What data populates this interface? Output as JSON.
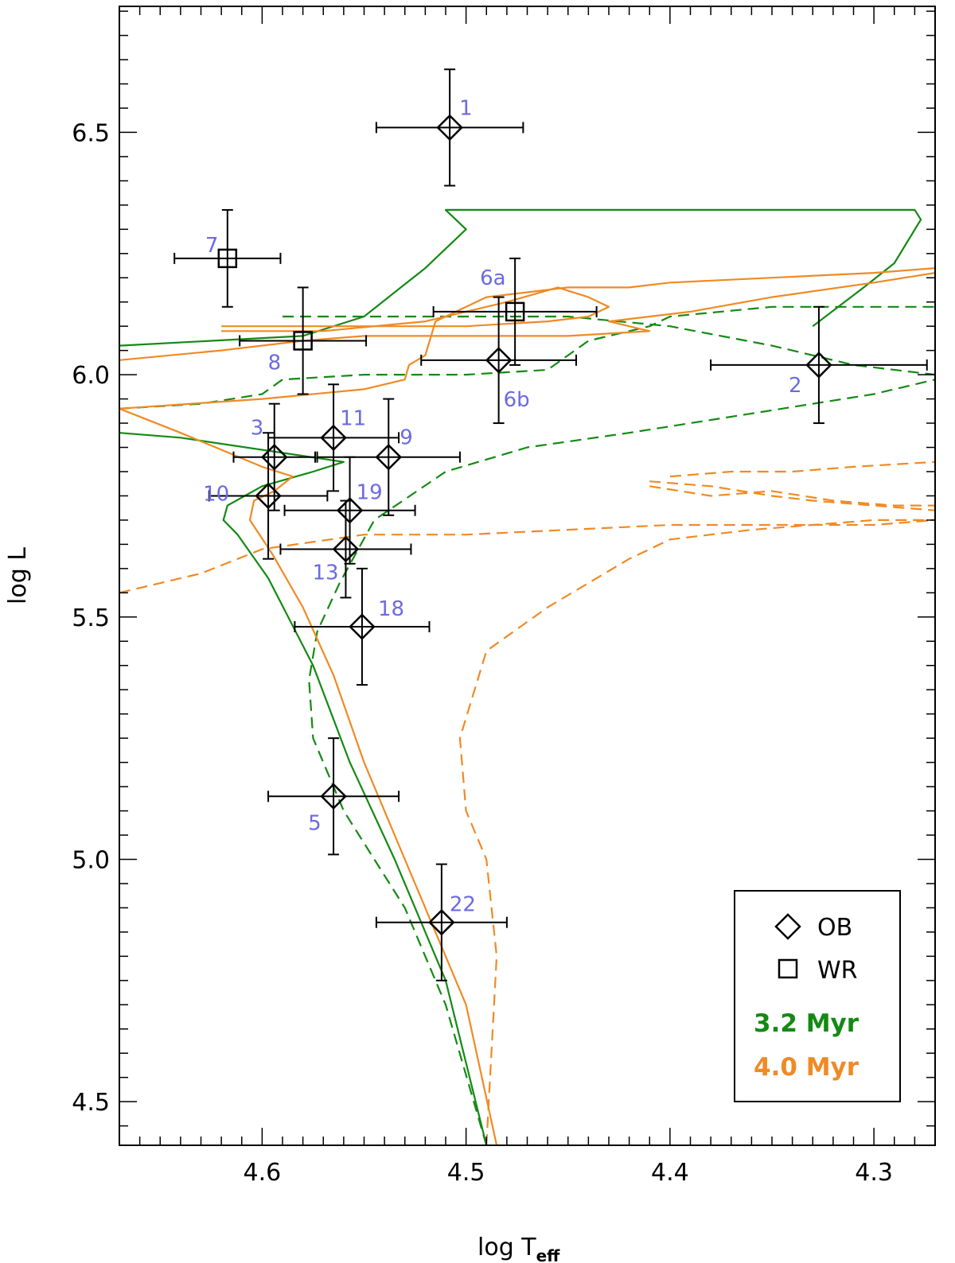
{
  "chart_data": {
    "type": "scatter",
    "xlabel": "log T",
    "xlabel_sub": "eff",
    "ylabel": "log L",
    "xlim": [
      4.67,
      4.27
    ],
    "ylim": [
      4.41,
      6.76
    ],
    "x_ticks": [
      "4.6",
      "4.5",
      "4.4",
      "4.3"
    ],
    "x_tick_values": [
      4.6,
      4.5,
      4.4,
      4.3
    ],
    "y_ticks": [
      "4.5",
      "5.0",
      "5.5",
      "6.0",
      "6.5"
    ],
    "y_tick_values": [
      4.5,
      5.0,
      5.5,
      6.0,
      6.5
    ],
    "grid": false,
    "points": [
      {
        "label": "1",
        "marker": "diamond",
        "x": 4.508,
        "y": 6.51,
        "xerr": 0.036,
        "yerr": 0.12
      },
      {
        "label": "7",
        "marker": "square",
        "x": 4.617,
        "y": 6.24,
        "xerr": 0.026,
        "yerr": 0.1
      },
      {
        "label": "6a",
        "marker": "square",
        "x": 4.476,
        "y": 6.13,
        "xerr": 0.04,
        "yerr": 0.11
      },
      {
        "label": "8",
        "marker": "square",
        "x": 4.58,
        "y": 6.07,
        "xerr": 0.031,
        "yerr": 0.11
      },
      {
        "label": "6b",
        "marker": "diamond",
        "x": 4.484,
        "y": 6.03,
        "xerr": 0.038,
        "yerr": 0.13
      },
      {
        "label": "2",
        "marker": "diamond",
        "x": 4.327,
        "y": 6.02,
        "xerr": 0.053,
        "yerr": 0.12
      },
      {
        "label": "11",
        "marker": "diamond",
        "x": 4.565,
        "y": 5.87,
        "xerr": 0.032,
        "yerr": 0.11
      },
      {
        "label": "3",
        "marker": "diamond",
        "x": 4.594,
        "y": 5.83,
        "xerr": 0.02,
        "yerr": 0.11
      },
      {
        "label": "9",
        "marker": "diamond",
        "x": 4.538,
        "y": 5.83,
        "xerr": 0.035,
        "yerr": 0.12
      },
      {
        "label": "10",
        "marker": "diamond",
        "x": 4.597,
        "y": 5.75,
        "xerr": 0.029,
        "yerr": 0.13
      },
      {
        "label": "19",
        "marker": "diamond",
        "x": 4.557,
        "y": 5.72,
        "xerr": 0.032,
        "yerr": 0.11
      },
      {
        "label": "13",
        "marker": "diamond",
        "x": 4.559,
        "y": 5.64,
        "xerr": 0.032,
        "yerr": 0.1
      },
      {
        "label": "18",
        "marker": "diamond",
        "x": 4.551,
        "y": 5.48,
        "xerr": 0.033,
        "yerr": 0.12
      },
      {
        "label": "5",
        "marker": "diamond",
        "x": 4.565,
        "y": 5.13,
        "xerr": 0.032,
        "yerr": 0.12
      },
      {
        "label": "22",
        "marker": "diamond",
        "x": 4.512,
        "y": 4.87,
        "xerr": 0.032,
        "yerr": 0.12
      }
    ],
    "series": [
      {
        "name": "3.2 Myr",
        "color": "#138a13",
        "dash": false,
        "x": [
          4.49,
          4.51,
          4.535,
          4.557,
          4.575,
          4.597,
          4.612,
          4.619,
          4.617,
          4.6,
          4.575,
          4.56,
          4.64,
          4.67
        ],
        "y": [
          4.41,
          4.75,
          5.0,
          5.2,
          5.4,
          5.58,
          5.67,
          5.7,
          5.73,
          5.77,
          5.8,
          5.82,
          5.87,
          5.88
        ]
      },
      {
        "name": "3.2 Myr",
        "color": "#138a13",
        "dash": false,
        "x": [
          4.67,
          4.58,
          4.55,
          4.535,
          4.52,
          4.5,
          4.51,
          4.495,
          4.45,
          4.4,
          4.35,
          4.3,
          4.28,
          4.277,
          4.29,
          4.305,
          4.33
        ],
        "y": [
          6.06,
          6.08,
          6.12,
          6.17,
          6.22,
          6.3,
          6.34,
          6.34,
          6.34,
          6.34,
          6.34,
          6.34,
          6.34,
          6.32,
          6.23,
          6.18,
          6.1
        ]
      },
      {
        "name": "3.2 Myr",
        "color": "#138a13",
        "dash": true,
        "x": [
          4.49,
          4.51,
          4.53,
          4.56,
          4.575,
          4.577,
          4.573,
          4.562,
          4.545,
          4.51,
          4.47,
          4.42,
          4.36,
          4.3,
          4.27
        ],
        "y": [
          4.41,
          4.7,
          4.9,
          5.1,
          5.25,
          5.37,
          5.47,
          5.57,
          5.7,
          5.8,
          5.85,
          5.88,
          5.92,
          5.96,
          5.99
        ]
      },
      {
        "name": "3.2 Myr",
        "color": "#138a13",
        "dash": true,
        "x": [
          4.67,
          4.63,
          4.6,
          4.59,
          4.55,
          4.5,
          4.46,
          4.44,
          4.41,
          4.4,
          4.35,
          4.32,
          4.3,
          4.27
        ],
        "y": [
          5.93,
          5.94,
          5.96,
          5.99,
          6.0,
          6.0,
          6.01,
          6.07,
          6.1,
          6.12,
          6.14,
          6.14,
          6.14,
          6.14
        ]
      },
      {
        "name": "3.2 Myr",
        "color": "#138a13",
        "dash": true,
        "x": [
          4.59,
          4.55,
          4.5,
          4.45,
          4.4,
          4.35,
          4.31,
          4.27
        ],
        "y": [
          6.12,
          6.12,
          6.12,
          6.12,
          6.1,
          6.06,
          6.02,
          6.0
        ]
      },
      {
        "name": "4.0 Myr",
        "color": "#f08a24",
        "dash": false,
        "x": [
          4.485,
          4.5,
          4.53,
          4.55,
          4.565,
          4.58,
          4.595,
          4.606,
          4.604,
          4.594,
          4.585,
          4.6,
          4.64,
          4.67
        ],
        "y": [
          4.41,
          4.7,
          5.0,
          5.2,
          5.38,
          5.52,
          5.63,
          5.7,
          5.74,
          5.76,
          5.79,
          5.81,
          5.88,
          5.93
        ]
      },
      {
        "name": "4.0 Myr",
        "color": "#f08a24",
        "dash": false,
        "x": [
          4.67,
          4.6,
          4.55,
          4.53,
          4.528,
          4.52,
          4.515,
          4.49,
          4.45,
          4.42,
          4.4,
          4.35,
          4.3,
          4.27
        ],
        "y": [
          5.93,
          5.95,
          5.97,
          5.99,
          6.02,
          6.04,
          6.11,
          6.16,
          6.18,
          6.18,
          6.19,
          6.2,
          6.21,
          6.22
        ]
      },
      {
        "name": "4.0 Myr",
        "color": "#f08a24",
        "dash": false,
        "x": [
          4.67,
          4.62,
          4.58,
          4.55,
          4.5,
          4.45,
          4.41,
          4.43,
          4.39,
          4.35,
          4.3,
          4.27
        ],
        "y": [
          6.03,
          6.05,
          6.07,
          6.08,
          6.08,
          6.08,
          6.09,
          6.11,
          6.13,
          6.16,
          6.19,
          6.21
        ]
      },
      {
        "name": "4.0 Myr",
        "color": "#f08a24",
        "dash": false,
        "x": [
          4.62,
          4.55,
          4.5,
          4.46,
          4.44,
          4.43,
          4.44,
          4.455,
          4.48,
          4.52,
          4.57,
          4.62
        ],
        "y": [
          6.1,
          6.1,
          6.1,
          6.11,
          6.12,
          6.14,
          6.16,
          6.18,
          6.15,
          6.11,
          6.09,
          6.09
        ]
      },
      {
        "name": "4.0 Myr",
        "color": "#f08a24",
        "dash": true,
        "x": [
          4.67,
          4.63,
          4.6,
          4.55,
          4.5,
          4.45,
          4.4,
          4.35,
          4.3,
          4.27
        ],
        "y": [
          5.55,
          5.59,
          5.64,
          5.67,
          5.67,
          5.68,
          5.69,
          5.69,
          5.69,
          5.7
        ]
      },
      {
        "name": "4.0 Myr",
        "color": "#f08a24",
        "dash": true,
        "x": [
          4.49,
          4.485,
          4.49,
          4.5,
          4.503,
          4.49,
          4.46,
          4.42,
          4.4,
          4.36,
          4.33,
          4.3,
          4.27
        ],
        "y": [
          4.41,
          4.8,
          5.0,
          5.1,
          5.25,
          5.43,
          5.52,
          5.62,
          5.66,
          5.68,
          5.69,
          5.7,
          5.7
        ]
      },
      {
        "name": "4.0 Myr",
        "color": "#f08a24",
        "dash": true,
        "x": [
          4.41,
          4.38,
          4.35,
          4.33,
          4.3,
          4.27
        ],
        "y": [
          5.78,
          5.77,
          5.75,
          5.74,
          5.73,
          5.72
        ]
      },
      {
        "name": "4.0 Myr",
        "color": "#f08a24",
        "dash": true,
        "x": [
          4.4,
          4.37,
          4.34,
          4.31,
          4.27
        ],
        "y": [
          5.79,
          5.8,
          5.8,
          5.81,
          5.82
        ]
      },
      {
        "name": "4.0 Myr",
        "color": "#f08a24",
        "dash": true,
        "x": [
          4.41,
          4.38,
          4.35,
          4.32,
          4.29,
          4.27
        ],
        "y": [
          5.77,
          5.75,
          5.76,
          5.74,
          5.73,
          5.73
        ]
      }
    ],
    "legend": {
      "position": "bottom-right",
      "entries": [
        {
          "marker": "diamond",
          "label": "OB"
        },
        {
          "marker": "square",
          "label": "WR"
        },
        {
          "label": "3.2 Myr",
          "color": "#138a13"
        },
        {
          "label": "4.0 Myr",
          "color": "#f08a24"
        }
      ]
    }
  }
}
